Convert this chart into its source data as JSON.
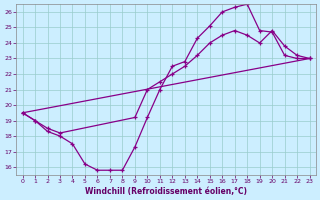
{
  "xlabel": "Windchill (Refroidissement éolien,°C)",
  "bg_color": "#cceeff",
  "line_color": "#880088",
  "grid_color": "#99cccc",
  "xlim": [
    -0.5,
    23.5
  ],
  "ylim": [
    15.5,
    26.5
  ],
  "xticks": [
    0,
    1,
    2,
    3,
    4,
    5,
    6,
    7,
    8,
    9,
    10,
    11,
    12,
    13,
    14,
    15,
    16,
    17,
    18,
    19,
    20,
    21,
    22,
    23
  ],
  "yticks": [
    16,
    17,
    18,
    19,
    20,
    21,
    22,
    23,
    24,
    25,
    26
  ],
  "curve1_x": [
    0,
    1,
    2,
    3,
    4,
    5,
    6,
    7,
    8,
    9,
    10,
    11,
    12,
    13,
    14,
    15,
    16,
    17,
    18,
    19,
    20,
    21,
    22,
    23
  ],
  "curve1_y": [
    19.5,
    19.0,
    18.3,
    18.0,
    17.5,
    16.2,
    15.8,
    15.8,
    15.8,
    17.3,
    19.2,
    21.0,
    22.5,
    22.8,
    24.3,
    25.1,
    26.0,
    26.3,
    26.5,
    24.8,
    24.7,
    23.2,
    23.0,
    23.0
  ],
  "curve2_x": [
    0,
    1,
    2,
    3,
    9,
    10,
    11,
    12,
    13,
    14,
    15,
    16,
    17,
    18,
    19,
    20,
    21,
    22,
    23
  ],
  "curve2_y": [
    19.5,
    19.0,
    18.5,
    18.2,
    19.2,
    21.0,
    21.5,
    22.0,
    22.5,
    23.2,
    24.0,
    24.5,
    24.8,
    24.5,
    24.0,
    24.8,
    23.8,
    23.2,
    23.0
  ],
  "curve3_x": [
    0,
    23
  ],
  "curve3_y": [
    19.5,
    23.0
  ]
}
